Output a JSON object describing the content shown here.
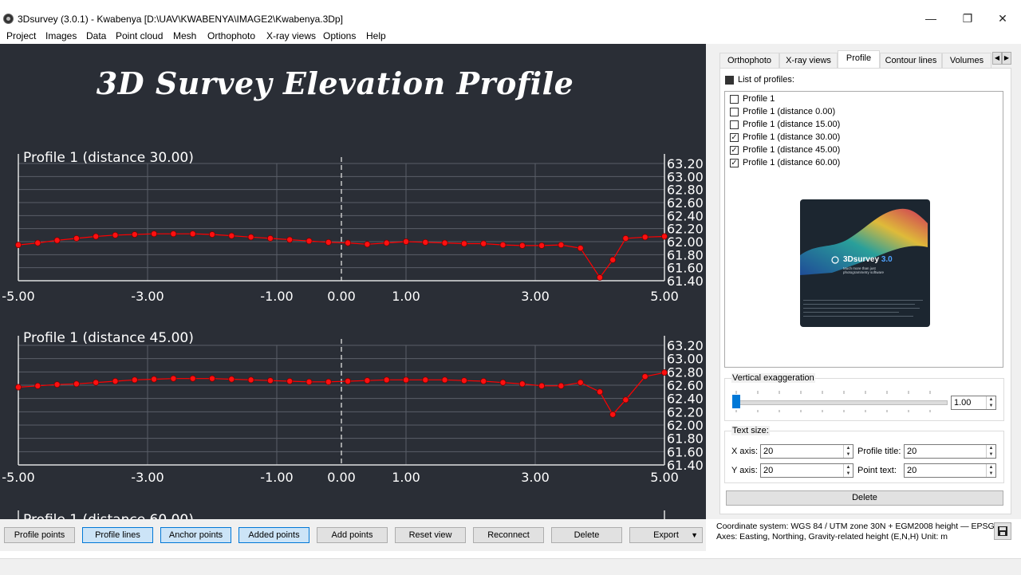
{
  "window": {
    "title": "3Dsurvey (3.0.1) - Kwabenya [D:\\UAV\\KWABENYA\\IMAGE2\\Kwabenya.3Dp]",
    "minimize": "—",
    "maximize": "❐",
    "close": "✕"
  },
  "menu": [
    "Project",
    "Images",
    "Data",
    "Point cloud",
    "Mesh",
    "Orthophoto",
    "X-ray views",
    "Options",
    "Help"
  ],
  "overlay_title": "3D Survey Elevation Profile",
  "chart_data": [
    {
      "type": "line",
      "title": "Profile 1 (distance 30.00)",
      "xlim": [
        -5,
        5
      ],
      "ylim": [
        61.4,
        63.2
      ],
      "x_ticks": [
        "-5.00",
        "-3.00",
        "-1.00",
        "0.00",
        "1.00",
        "3.00",
        "5.00"
      ],
      "y_ticks": [
        "63.20",
        "63.00",
        "62.80",
        "62.60",
        "62.40",
        "62.20",
        "62.00",
        "61.80",
        "61.60",
        "61.40"
      ],
      "grid": true,
      "marker_color": "#ff0000",
      "x": [
        -5.0,
        -4.7,
        -4.4,
        -4.1,
        -3.8,
        -3.5,
        -3.2,
        -2.9,
        -2.6,
        -2.3,
        -2.0,
        -1.7,
        -1.4,
        -1.1,
        -0.8,
        -0.5,
        -0.2,
        0.1,
        0.4,
        0.7,
        1.0,
        1.3,
        1.6,
        1.9,
        2.2,
        2.5,
        2.8,
        3.1,
        3.4,
        3.7,
        4.0,
        4.2,
        4.4,
        4.7,
        5.0
      ],
      "y": [
        61.95,
        61.98,
        62.02,
        62.05,
        62.08,
        62.1,
        62.11,
        62.12,
        62.12,
        62.12,
        62.11,
        62.09,
        62.07,
        62.05,
        62.03,
        62.01,
        61.99,
        61.98,
        61.96,
        61.98,
        62.0,
        61.99,
        61.98,
        61.97,
        61.97,
        61.95,
        61.94,
        61.94,
        61.95,
        61.9,
        61.45,
        61.72,
        62.05,
        62.07,
        62.08
      ]
    },
    {
      "type": "line",
      "title": "Profile 1 (distance 45.00)",
      "xlim": [
        -5,
        5
      ],
      "ylim": [
        61.4,
        63.2
      ],
      "x_ticks": [
        "-5.00",
        "-3.00",
        "-1.00",
        "0.00",
        "1.00",
        "3.00",
        "5.00"
      ],
      "y_ticks": [
        "63.20",
        "63.00",
        "62.80",
        "62.60",
        "62.40",
        "62.20",
        "62.00",
        "61.80",
        "61.60",
        "61.40"
      ],
      "grid": true,
      "marker_color": "#ff0000",
      "x": [
        -5.0,
        -4.7,
        -4.4,
        -4.1,
        -3.8,
        -3.5,
        -3.2,
        -2.9,
        -2.6,
        -2.3,
        -2.0,
        -1.7,
        -1.4,
        -1.1,
        -0.8,
        -0.5,
        -0.2,
        0.1,
        0.4,
        0.7,
        1.0,
        1.3,
        1.6,
        1.9,
        2.2,
        2.5,
        2.8,
        3.1,
        3.4,
        3.7,
        4.0,
        4.2,
        4.4,
        4.7,
        5.0
      ],
      "y": [
        62.57,
        62.59,
        62.61,
        62.62,
        62.64,
        62.66,
        62.68,
        62.69,
        62.7,
        62.7,
        62.7,
        62.69,
        62.68,
        62.67,
        62.66,
        62.65,
        62.65,
        62.66,
        62.67,
        62.68,
        62.68,
        62.68,
        62.68,
        62.67,
        62.66,
        62.64,
        62.62,
        62.59,
        62.59,
        62.64,
        62.5,
        62.16,
        62.38,
        62.73,
        62.79
      ]
    }
  ],
  "partial_plot_title": "Profile 1 (distance 60.00)",
  "toolbar": {
    "buttons": [
      "Profile points",
      "Profile lines",
      "Anchor points",
      "Added points",
      "Add points",
      "Reset view",
      "Reconnect",
      "Delete",
      "Export"
    ],
    "export_arrow": "▼"
  },
  "panel": {
    "tabs": [
      "Orthophoto",
      "X-ray views",
      "Profile",
      "Contour lines",
      "Volumes"
    ],
    "active_tab": "Profile",
    "tab_scroll_left": "◀",
    "tab_scroll_right": "▶",
    "list_header": "List of profiles:",
    "profiles": [
      {
        "label": "Profile 1",
        "checked": false
      },
      {
        "label": "Profile 1 (distance 0.00)",
        "checked": false
      },
      {
        "label": "Profile 1 (distance 15.00)",
        "checked": false
      },
      {
        "label": "Profile 1 (distance 30.00)",
        "checked": true
      },
      {
        "label": "Profile 1 (distance 45.00)",
        "checked": true
      },
      {
        "label": "Profile 1 (distance 60.00)",
        "checked": true
      }
    ],
    "splash": {
      "brand": "3Dsurvey",
      "version": "3.0",
      "tagline": "Much more than just photogrammetry software"
    },
    "vertical_exaggeration": {
      "label": "Vertical exaggeration",
      "value": "1.00",
      "slider_fraction": 0.0
    },
    "text_size": {
      "label": "Text size:",
      "x_axis_label": "X axis:",
      "x_axis_value": "20",
      "y_axis_label": "Y axis:",
      "y_axis_value": "20",
      "profile_title_label": "Profile title:",
      "profile_title_value": "20",
      "point_text_label": "Point text:",
      "point_text_value": "20"
    },
    "delete_button": "Delete"
  },
  "coordinate_info": {
    "line1": "Coordinate system: WGS 84 / UTM zone 30N + EGM2008 height — EPSG...",
    "line2": "Axes: Easting, Northing, Gravity-related height (E,N,H) Unit: m"
  }
}
